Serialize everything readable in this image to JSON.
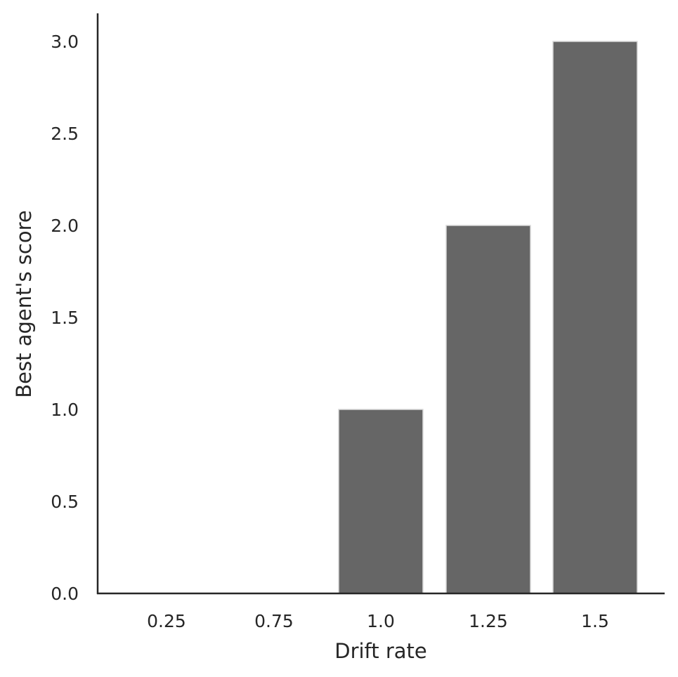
{
  "chart_data": {
    "type": "bar",
    "categories": [
      "0.25",
      "0.75",
      "1.0",
      "1.25",
      "1.5"
    ],
    "values": [
      0,
      0,
      1,
      2,
      3
    ],
    "title": "",
    "xlabel": "Drift rate",
    "ylabel": "Best agent's score",
    "ylim": [
      0,
      3.15
    ],
    "yticks": [
      "0.0",
      "0.5",
      "1.0",
      "1.5",
      "2.0",
      "2.5",
      "3.0"
    ],
    "grid": false,
    "bar_color": "#666666",
    "bar_edge_color": "#d9d9d9",
    "axis_color": "#262626"
  }
}
